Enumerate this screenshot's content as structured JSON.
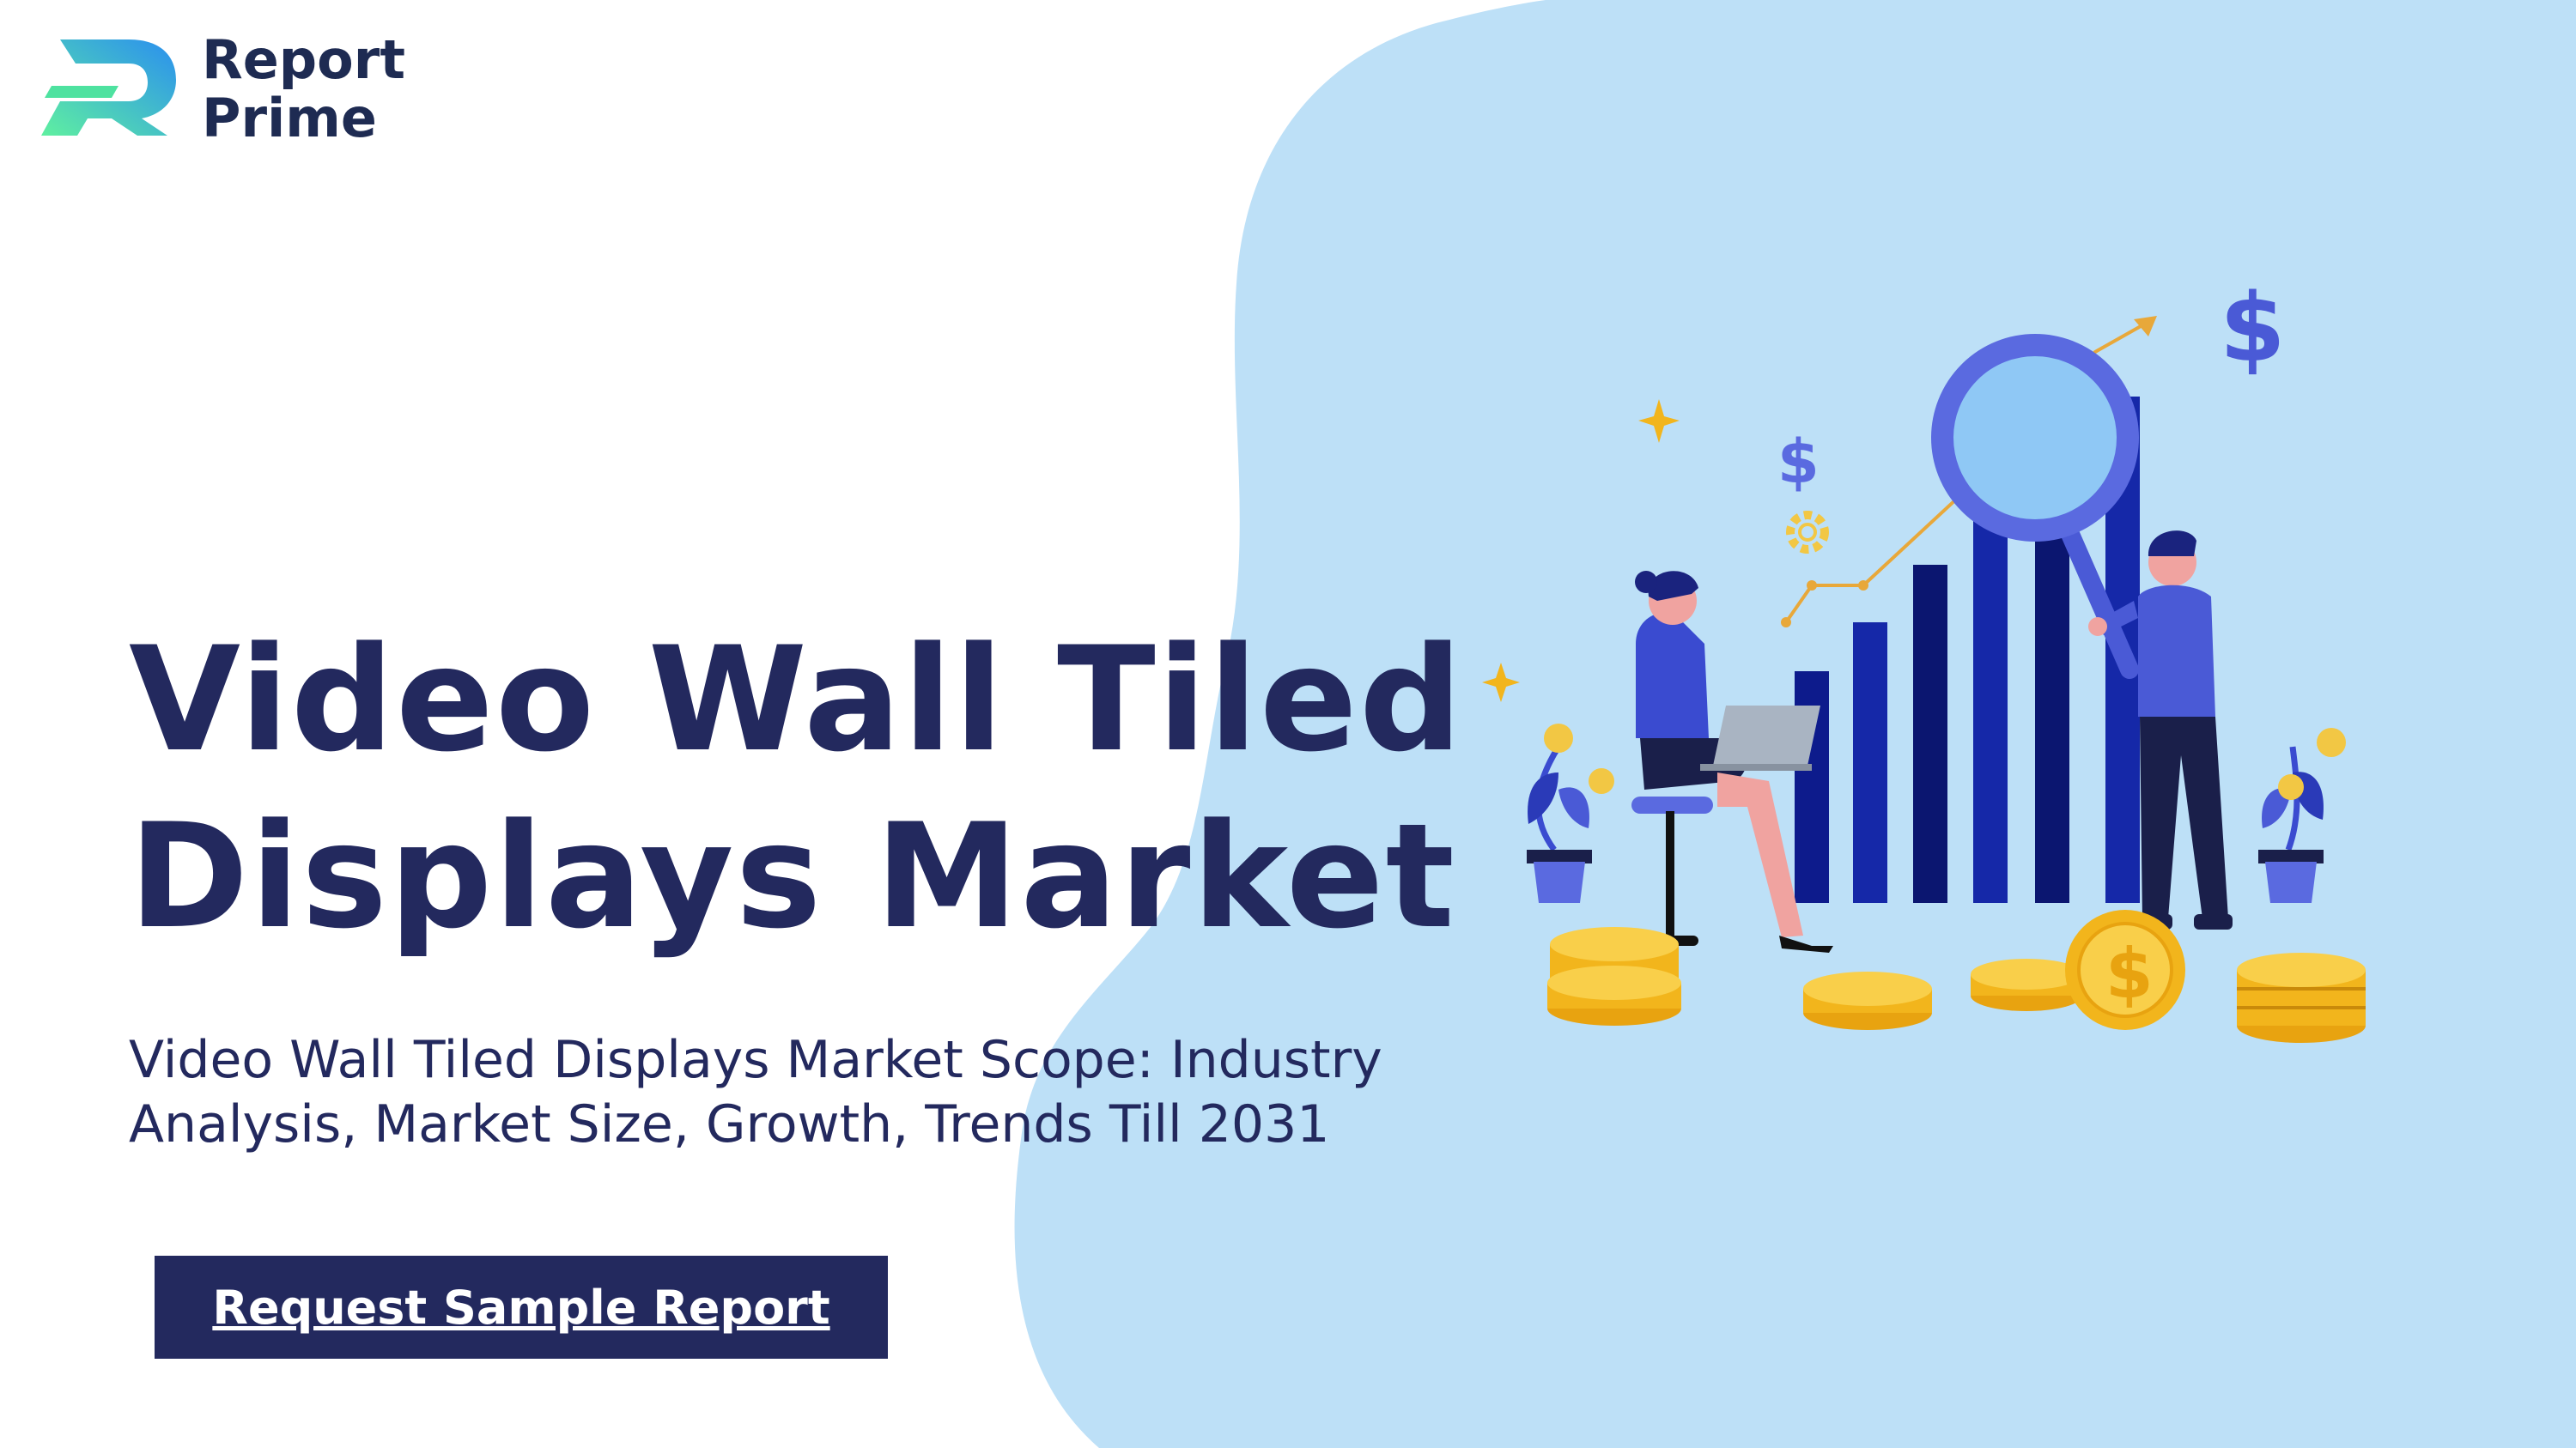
{
  "brand": {
    "name_line1": "Report",
    "name_line2": "Prime",
    "colors": {
      "navy": "#1e2b52",
      "logo_blue": "#2a7fe8",
      "logo_green": "#4ee2a0"
    }
  },
  "hero": {
    "title_line1": "Video Wall Tiled",
    "title_line2": "Displays Market",
    "subtitle_line1": "Video Wall Tiled Displays Market Scope: Industry",
    "subtitle_line2": "Analysis, Market Size, Growth, Trends Till 2031",
    "cta_label": "Request Sample Report"
  },
  "illustration": {
    "icons": [
      "dollar-sign-icon",
      "magnifier-icon",
      "gear-icon",
      "sparkle-icon",
      "coin-stack-icon",
      "plant-icon",
      "trend-arrow-icon",
      "laptop-icon"
    ]
  },
  "theme": {
    "background": "#ffffff",
    "blob": "#bde0f7",
    "text": "#23295e",
    "accent_bar": "#0d1b8c",
    "gold": "#f2b51c"
  }
}
